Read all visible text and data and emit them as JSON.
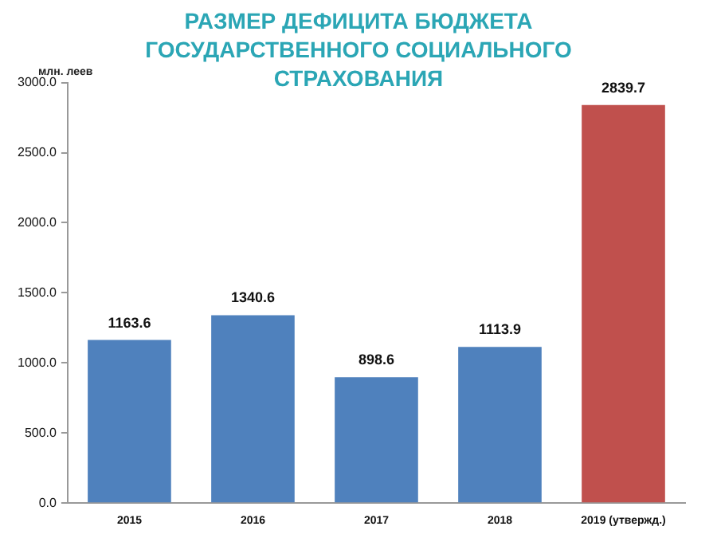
{
  "chart_data": {
    "type": "bar",
    "title": "РАЗМЕР ДЕФИЦИТА БЮДЖЕТА ГОСУДАРСТВЕННОГО СОЦИАЛЬНОГО СТРАХОВАНИЯ",
    "ylabel": "млн. леев",
    "categories": [
      "2015",
      "2016",
      "2017",
      "2018",
      "2019 (утвержд.)"
    ],
    "values": [
      1163.6,
      1340.6,
      898.6,
      1113.9,
      2839.7
    ],
    "colors": [
      "#4f81bd",
      "#4f81bd",
      "#4f81bd",
      "#4f81bd",
      "#c0504d"
    ],
    "ylim": [
      0,
      3000
    ],
    "yticks": [
      {
        "value": 0,
        "label": "0.0"
      },
      {
        "value": 500,
        "label": "500.0"
      },
      {
        "value": 1000,
        "label": "1000.0"
      },
      {
        "value": 1500,
        "label": "1500.0"
      },
      {
        "value": 2000,
        "label": "2000.0"
      },
      {
        "value": 2500,
        "label": "2500.0"
      },
      {
        "value": 3000,
        "label": "3000.0"
      }
    ],
    "data_labels": true,
    "grid": false,
    "legend": false
  }
}
